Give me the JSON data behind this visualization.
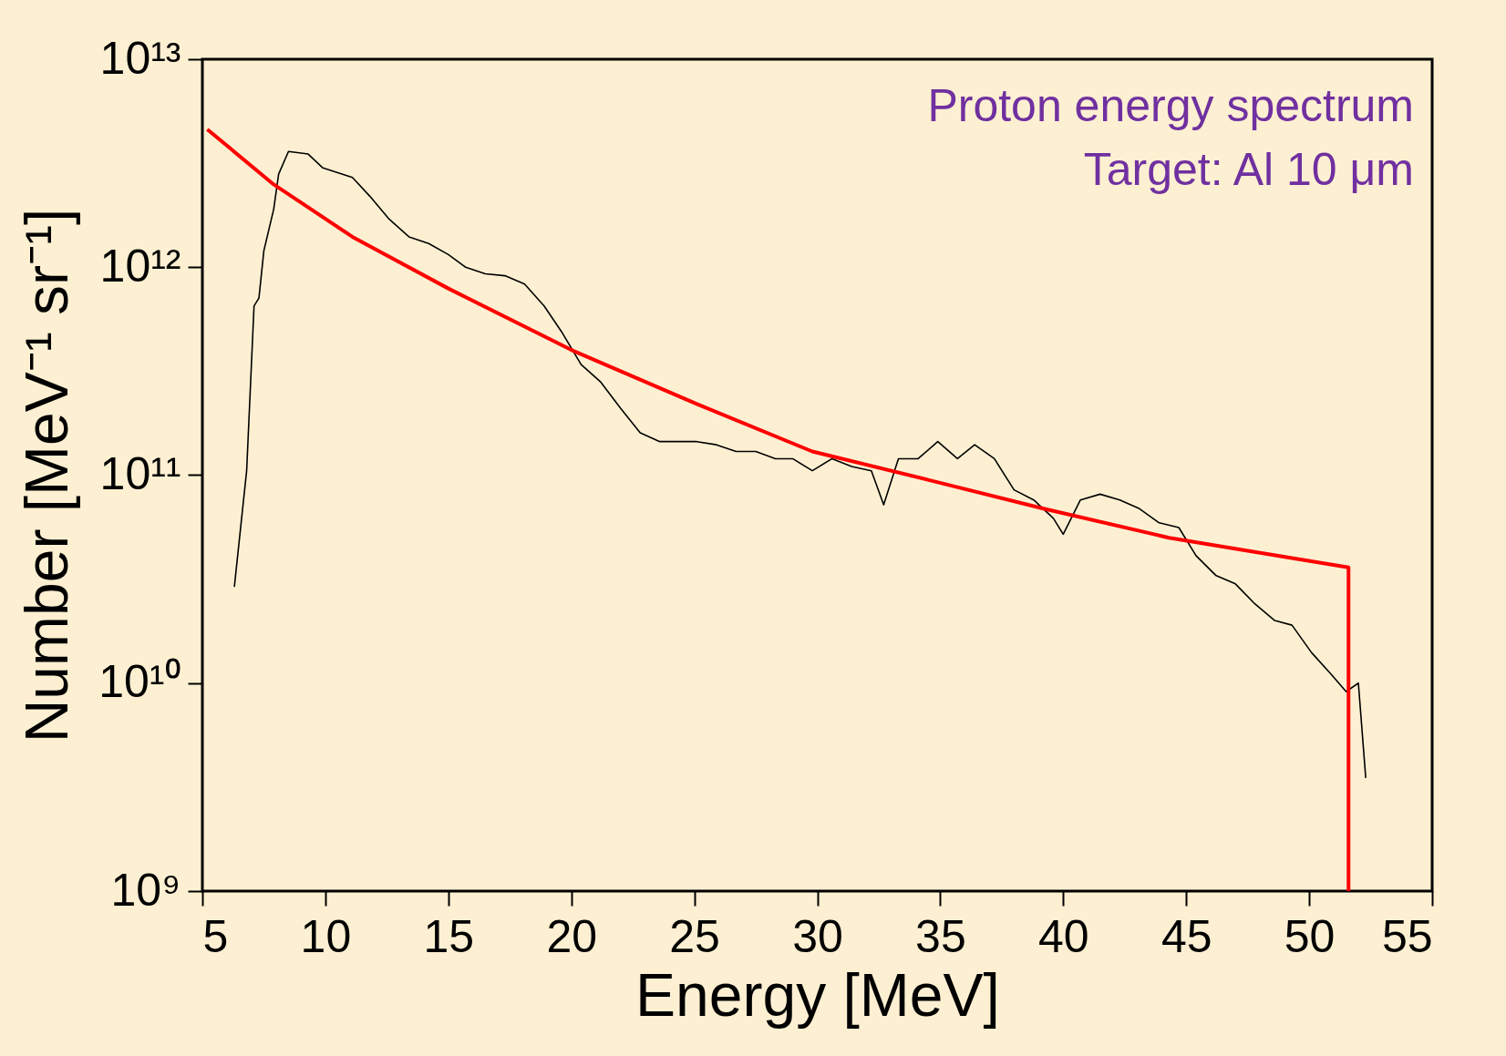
{
  "chart_data": {
    "type": "line",
    "xlabel": "Energy [MeV]",
    "ylabel": "Number [MeV⁻¹ sr⁻¹]",
    "log": "y",
    "grid": false,
    "marker": "none",
    "line_style": "solid",
    "xlim": [
      5,
      55
    ],
    "xticks": [
      5,
      10,
      15,
      20,
      25,
      30,
      35,
      40,
      45,
      50,
      55
    ],
    "ylim": [
      1000000000.0,
      10000000000000.0
    ],
    "yticks": [
      {
        "value": 1000000000.0,
        "label": "10⁹"
      },
      {
        "value": 10000000000.0,
        "label": "10¹⁰"
      },
      {
        "value": 100000000000.0,
        "label": "10¹¹"
      },
      {
        "value": 1000000000000.0,
        "label": "10¹²"
      },
      {
        "value": 10000000000000.0,
        "label": "10¹³"
      }
    ],
    "annotations": [
      "Proton energy spectrum",
      "Target: Al 10 μm"
    ],
    "series": [
      {
        "color": "#000000",
        "x": [
          6.3,
          6.8,
          7.1,
          7.3,
          7.5,
          7.9,
          8.1,
          8.5,
          9.3,
          9.9,
          10.7,
          11.1,
          11.8,
          12.6,
          13.4,
          14.2,
          15.0,
          15.7,
          16.5,
          17.3,
          18.1,
          18.9,
          19.6,
          20.4,
          21.2,
          22.0,
          22.8,
          23.6,
          24.3,
          25.1,
          25.9,
          26.7,
          27.5,
          28.3,
          29.0,
          29.8,
          30.6,
          31.4,
          32.2,
          32.7,
          33.3,
          34.1,
          34.9,
          35.7,
          36.4,
          37.2,
          38.0,
          38.8,
          39.6,
          40.0,
          40.7,
          41.5,
          42.3,
          43.1,
          43.9,
          44.7,
          45.4,
          46.2,
          47.0,
          47.8,
          48.6,
          49.3,
          50.1,
          50.9,
          51.5,
          52.0,
          52.3
        ],
        "values": [
          29000000000.0,
          105000000000.0,
          650000000000.0,
          710000000000.0,
          1200000000000.0,
          1900000000000.0,
          2800000000000.0,
          3600000000000.0,
          3500000000000.0,
          3000000000000.0,
          2800000000000.0,
          2700000000000.0,
          2200000000000.0,
          1700000000000.0,
          1400000000000.0,
          1300000000000.0,
          1150000000000.0,
          1000000000000.0,
          930000000000.0,
          910000000000.0,
          830000000000.0,
          650000000000.0,
          490000000000.0,
          340000000000.0,
          280000000000.0,
          210000000000.0,
          160000000000.0,
          145000000000.0,
          145000000000.0,
          145000000000.0,
          140000000000.0,
          130000000000.0,
          130000000000.0,
          120000000000.0,
          120000000000.0,
          105000000000.0,
          120000000000.0,
          110000000000.0,
          105000000000.0,
          72000000000.0,
          120000000000.0,
          120000000000.0,
          145000000000.0,
          120000000000.0,
          140000000000.0,
          120000000000.0,
          85000000000.0,
          76000000000.0,
          62000000000.0,
          52000000000.0,
          76000000000.0,
          81000000000.0,
          76000000000.0,
          69000000000.0,
          59000000000.0,
          56000000000.0,
          41000000000.0,
          33000000000.0,
          30000000000.0,
          24000000000.0,
          20000000000.0,
          19000000000.0,
          14000000000.0,
          11000000000.0,
          9100000000.0,
          10000000000.0,
          3500000000.0
        ]
      },
      {
        "color": "#ff0000",
        "x": [
          5.2,
          7.9,
          11.1,
          15.0,
          20.0,
          25.1,
          29.8,
          34.5,
          39.2,
          44.3,
          51.6,
          51.6
        ],
        "values": [
          4600000000000.0,
          2500000000000.0,
          1400000000000.0,
          790000000000.0,
          400000000000.0,
          220000000000.0,
          130000000000.0,
          95000000000.0,
          69000000000.0,
          50000000000.0,
          36000000000.0,
          1000000000.0
        ]
      }
    ]
  }
}
